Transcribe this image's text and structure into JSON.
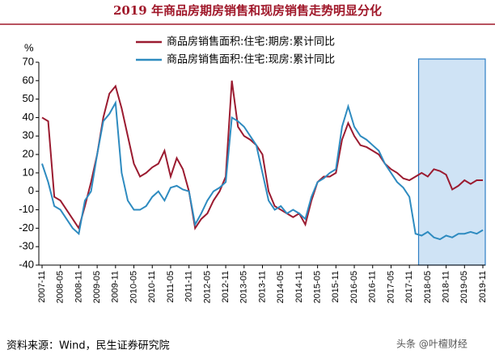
{
  "chart_data": {
    "type": "line",
    "title": "2019 年商品房期房销售和现房销售走势明显分化",
    "y_unit": "%",
    "source": "资料来源：Wind，民生证券研究院",
    "watermark": "头条 @叶檀财经",
    "categories": [
      "2007-11",
      null,
      null,
      "2008-05",
      null,
      null,
      "2008-11",
      null,
      null,
      "2009-05",
      null,
      null,
      "2009-11",
      null,
      null,
      "2010-05",
      null,
      null,
      "2010-11",
      null,
      null,
      "2011-05",
      null,
      null,
      "2011-11",
      null,
      null,
      "2012-05",
      null,
      null,
      "2012-11",
      null,
      null,
      "2013-05",
      null,
      null,
      "2013-11",
      null,
      null,
      "2014-05",
      null,
      null,
      "2014-11",
      null,
      null,
      "2015-05",
      null,
      null,
      "2015-11",
      null,
      null,
      "2016-05",
      null,
      null,
      "2016-11",
      null,
      null,
      "2017-05",
      null,
      null,
      "2017-11",
      null,
      null,
      "2018-05",
      null,
      null,
      "2018-11",
      null,
      null,
      "2019-05",
      null,
      null,
      "2019-11"
    ],
    "series": [
      {
        "name": "商品房销售面积:住宅:期房:累计同比",
        "color": "#9b1b30",
        "values": [
          40,
          38,
          -3,
          -5,
          -10,
          -15,
          -20,
          -8,
          5,
          20,
          40,
          53,
          57,
          45,
          30,
          15,
          8,
          10,
          13,
          15,
          22,
          8,
          18,
          12,
          0,
          -20,
          -15,
          -12,
          -5,
          0,
          8,
          60,
          35,
          30,
          28,
          25,
          20,
          0,
          -8,
          -10,
          -12,
          -14,
          -12,
          -18,
          -5,
          5,
          8,
          8,
          10,
          28,
          37,
          30,
          25,
          24,
          22,
          20,
          15,
          12,
          10,
          7,
          6,
          8,
          10,
          8,
          12,
          11,
          9,
          1,
          3,
          6,
          4,
          6,
          6
        ]
      },
      {
        "name": "商品房销售面积:住宅:现房:累计同比",
        "color": "#2e8bc0",
        "values": [
          15,
          5,
          -8,
          -10,
          -15,
          -20,
          -23,
          -5,
          0,
          20,
          38,
          42,
          48,
          10,
          -5,
          -10,
          -10,
          -8,
          -3,
          0,
          -5,
          2,
          3,
          1,
          0,
          -18,
          -12,
          -5,
          0,
          2,
          5,
          40,
          38,
          35,
          30,
          25,
          10,
          -5,
          -10,
          -8,
          -12,
          -10,
          -12,
          -15,
          -3,
          5,
          7,
          10,
          12,
          35,
          46,
          35,
          30,
          28,
          25,
          22,
          15,
          10,
          5,
          2,
          -3,
          -23,
          -24,
          -22,
          -25,
          -26,
          -24,
          -25,
          -23,
          -23,
          -22,
          -23,
          -21
        ]
      }
    ],
    "ylim": [
      -40,
      70
    ],
    "yticks": [
      -40,
      -30,
      -20,
      -10,
      0,
      10,
      20,
      30,
      40,
      50,
      60,
      70
    ]
  }
}
